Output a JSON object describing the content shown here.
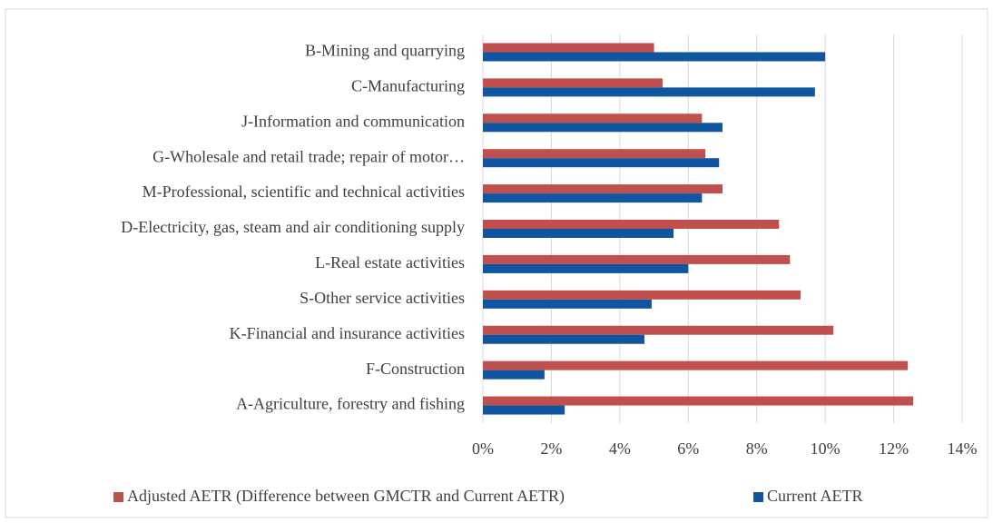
{
  "chart_data": {
    "type": "barh",
    "categories": [
      "B-Mining and quarrying",
      "C-Manufacturing",
      "J-Information and communication",
      "G-Wholesale and retail trade; repair of motor…",
      "M-Professional, scientific and technical activities",
      "D-Electricity, gas, steam and air conditioning supply",
      "L-Real estate activities",
      "S-Other service activities",
      "K-Financial and insurance activities",
      "F-Construction",
      "A-Agriculture, forestry and fishing"
    ],
    "series": [
      {
        "name": "Adjusted AETR (Difference between GMCTR and Current AETR)",
        "color": "#c0504d",
        "values": [
          5.0,
          5.25,
          6.4,
          6.5,
          7.0,
          8.65,
          8.97,
          9.28,
          10.24,
          12.41,
          12.57
        ]
      },
      {
        "name": "Current AETR",
        "color": "#0f55a0",
        "values": [
          10.0,
          9.7,
          7.0,
          6.9,
          6.4,
          5.57,
          6.0,
          4.93,
          4.72,
          1.8,
          2.39
        ]
      }
    ],
    "xlim": [
      0,
      14
    ],
    "xticks": [
      {
        "value": 0,
        "label": "0%"
      },
      {
        "value": 2,
        "label": "2%"
      },
      {
        "value": 4,
        "label": "4%"
      },
      {
        "value": 6,
        "label": "6%"
      },
      {
        "value": 8,
        "label": "8%"
      },
      {
        "value": 10,
        "label": "10%"
      },
      {
        "value": 12,
        "label": "12%"
      },
      {
        "value": 14,
        "label": "14%"
      }
    ],
    "grid": true,
    "legend": "bottom"
  }
}
